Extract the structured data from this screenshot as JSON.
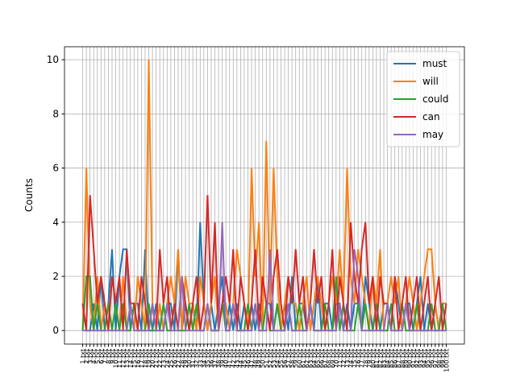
{
  "chart_data": {
    "type": "line",
    "ylabel": "Counts",
    "categories": [
      "1.txt",
      "2.txt",
      "3.txt",
      "4.txt",
      "5.txt",
      "6.txt",
      "7.txt",
      "8.txt",
      "9.txt",
      "10.txt",
      "11.txt",
      "12.txt",
      "13.txt",
      "14.txt",
      "15.txt",
      "16.txt",
      "17.txt",
      "18.txt",
      "19.txt",
      "20.txt",
      "21.txt",
      "22.txt",
      "23.txt",
      "24.txt",
      "25.txt",
      "26.txt",
      "27.txt",
      "28.txt",
      "29.txt",
      "30.txt",
      "31.txt",
      "32.txt",
      "33.txt",
      "34.txt",
      "35.txt",
      "36.txt",
      "37.txt",
      "38.txt",
      "39.txt",
      "40.txt",
      "41.txt",
      "42.txt",
      "43.txt",
      "44.txt",
      "45.txt",
      "46.txt",
      "47.txt",
      "48.txt",
      "49.txt",
      "50.txt",
      "51.txt",
      "52.txt",
      "53.txt",
      "54.txt",
      "55.txt",
      "56.txt",
      "57.txt",
      "58.txt",
      "59.txt",
      "60.txt",
      "61.txt",
      "62.txt",
      "63.txt",
      "64.txt",
      "65.txt",
      "66.txt",
      "67.txt",
      "68.txt",
      "69.txt",
      "70.txt",
      "71.txt",
      "72.txt",
      "73.txt",
      "74.txt",
      "75.txt",
      "76.txt",
      "77.txt",
      "78.txt",
      "79.txt",
      "80.txt",
      "81.txt",
      "82.txt",
      "83.txt",
      "84.txt",
      "85.txt",
      "86.txt",
      "87.txt",
      "88.txt",
      "89.txt",
      "90.txt",
      "91.txt",
      "92.txt",
      "93.txt",
      "94.txt",
      "95.txt",
      "96.txt",
      "97.txt",
      "98.txt",
      "99.txt",
      "100.txt"
    ],
    "series": [
      {
        "name": "must",
        "color": "#1f77b4",
        "values": [
          1,
          0,
          0,
          1,
          0,
          2,
          0,
          1,
          3,
          0,
          2,
          3,
          3,
          0,
          1,
          1,
          0,
          3,
          0,
          0,
          1,
          0,
          0,
          1,
          1,
          0,
          3,
          0,
          1,
          0,
          1,
          0,
          4,
          1,
          0,
          1,
          0,
          1,
          2,
          0,
          1,
          0,
          1,
          0,
          1,
          0,
          1,
          0,
          1,
          0,
          1,
          1,
          0,
          1,
          0,
          1,
          0,
          2,
          0,
          1,
          1,
          0,
          1,
          0,
          2,
          0,
          1,
          1,
          0,
          1,
          1,
          0,
          1,
          0,
          1,
          1,
          0,
          2,
          1,
          0,
          1,
          0,
          1,
          1,
          0,
          2,
          1,
          0,
          1,
          1,
          0,
          1,
          2,
          0,
          1,
          0,
          1,
          0,
          1,
          1
        ]
      },
      {
        "name": "will",
        "color": "#ff7f0e",
        "values": [
          0,
          6,
          1,
          0,
          2,
          0,
          1,
          0,
          2,
          1,
          0,
          2,
          0,
          1,
          0,
          2,
          1,
          0,
          10,
          1,
          0,
          1,
          0,
          1,
          2,
          1,
          3,
          0,
          2,
          1,
          1,
          0,
          2,
          1,
          0,
          1,
          2,
          0,
          1,
          1,
          0,
          1,
          3,
          2,
          1,
          0,
          6,
          2,
          4,
          0,
          7,
          1,
          6,
          2,
          0,
          1,
          2,
          1,
          1,
          0,
          1,
          2,
          0,
          1,
          2,
          1,
          0,
          1,
          2,
          1,
          3,
          1,
          6,
          2,
          1,
          3,
          2,
          1,
          0,
          2,
          1,
          3,
          0,
          1,
          2,
          1,
          2,
          0,
          1,
          2,
          1,
          0,
          1,
          2,
          3,
          3,
          1,
          0,
          1,
          1
        ]
      },
      {
        "name": "could",
        "color": "#2ca02c",
        "values": [
          0,
          2,
          2,
          0,
          1,
          0,
          0,
          1,
          0,
          1,
          0,
          1,
          0,
          0,
          1,
          0,
          0,
          0,
          1,
          0,
          0,
          0,
          1,
          0,
          0,
          1,
          0,
          0,
          0,
          1,
          0,
          1,
          0,
          0,
          1,
          0,
          0,
          0,
          1,
          0,
          0,
          1,
          0,
          0,
          0,
          1,
          0,
          1,
          0,
          0,
          1,
          0,
          0,
          1,
          0,
          0,
          1,
          0,
          0,
          1,
          0,
          0,
          1,
          0,
          0,
          0,
          1,
          0,
          0,
          2,
          0,
          1,
          0,
          0,
          0,
          1,
          0,
          1,
          0,
          0,
          1,
          0,
          0,
          0,
          1,
          0,
          0,
          1,
          0,
          0,
          0,
          1,
          0,
          0,
          0,
          1,
          0,
          0,
          1,
          0
        ]
      },
      {
        "name": "can",
        "color": "#d62728",
        "values": [
          1,
          0,
          5,
          3,
          1,
          2,
          1,
          0,
          2,
          1,
          2,
          0,
          3,
          1,
          1,
          0,
          2,
          1,
          0,
          1,
          0,
          3,
          1,
          2,
          0,
          1,
          0,
          2,
          1,
          0,
          1,
          2,
          0,
          1,
          5,
          1,
          4,
          0,
          1,
          2,
          1,
          3,
          0,
          2,
          1,
          0,
          1,
          3,
          0,
          2,
          1,
          0,
          2,
          3,
          1,
          0,
          2,
          1,
          3,
          1,
          2,
          0,
          1,
          3,
          1,
          2,
          0,
          1,
          3,
          0,
          2,
          1,
          0,
          4,
          2,
          1,
          3,
          4,
          1,
          2,
          0,
          2,
          1,
          1,
          0,
          2,
          0,
          1,
          2,
          0,
          1,
          2,
          0,
          1,
          2,
          0,
          1,
          2,
          0,
          1
        ]
      },
      {
        "name": "may",
        "color": "#9467bd",
        "values": [
          0,
          0,
          0,
          0,
          0,
          0,
          0,
          0,
          0,
          0,
          0,
          0,
          0,
          1,
          0,
          0,
          0,
          0,
          0,
          1,
          0,
          0,
          0,
          1,
          0,
          0,
          0,
          2,
          0,
          0,
          0,
          0,
          0,
          0,
          1,
          0,
          0,
          0,
          4,
          0,
          0,
          1,
          0,
          0,
          0,
          0,
          0,
          1,
          0,
          0,
          0,
          3,
          0,
          0,
          0,
          0,
          1,
          0,
          0,
          0,
          0,
          0,
          1,
          0,
          0,
          0,
          0,
          0,
          0,
          0,
          1,
          0,
          0,
          0,
          3,
          2,
          0,
          0,
          0,
          0,
          0,
          0,
          0,
          1,
          0,
          0,
          0,
          0,
          1,
          0,
          0,
          0,
          0,
          0,
          0,
          0,
          0,
          0,
          0,
          0
        ]
      }
    ],
    "ylim": [
      -0.5,
      10.48
    ],
    "yticks": [
      0,
      2,
      4,
      6,
      8,
      10
    ],
    "grid": true,
    "legend": "upper right"
  }
}
